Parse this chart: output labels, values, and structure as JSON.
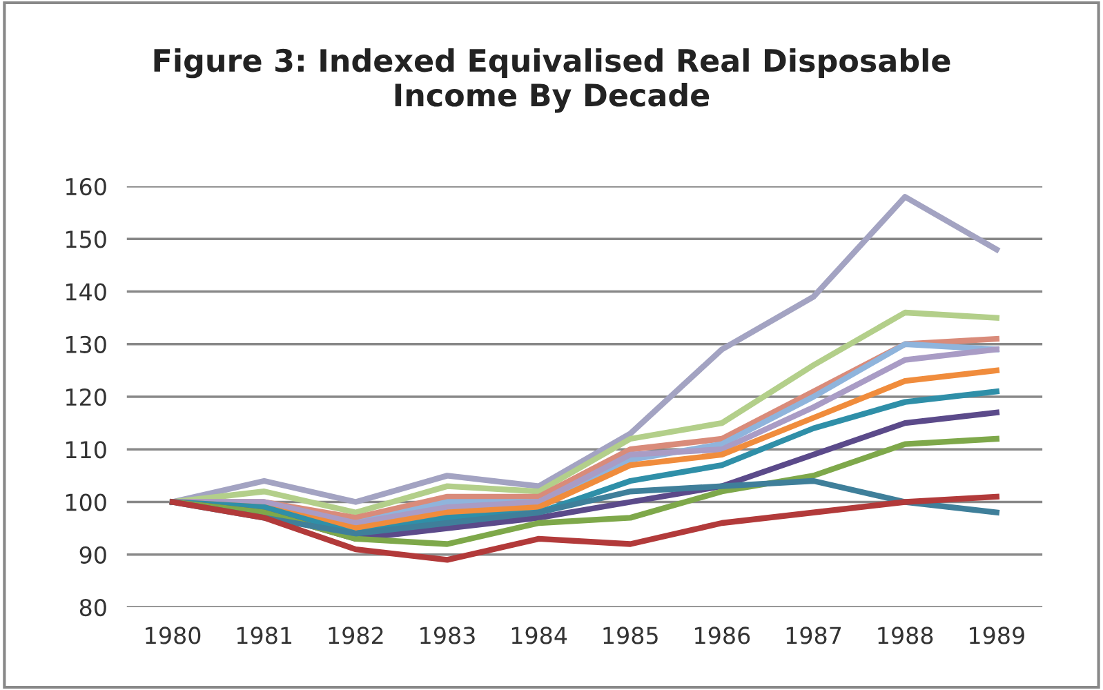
{
  "chart_data": {
    "type": "line",
    "title": "Figure 3: Indexed Equivalised Real Disposable\nIncome By Decade",
    "categories": [
      "1980",
      "1981",
      "1982",
      "1983",
      "1984",
      "1985",
      "1986",
      "1987",
      "1988",
      "1989"
    ],
    "ylim": [
      80,
      160
    ],
    "yticks": [
      80,
      90,
      100,
      110,
      120,
      130,
      140,
      150,
      160
    ],
    "grid": "y",
    "legend": false,
    "marker": "none",
    "line_style": "solid",
    "series": [
      {
        "color": "#a3a3c2",
        "values": [
          100,
          104,
          100,
          105,
          103,
          113,
          129,
          139,
          158,
          148
        ]
      },
      {
        "color": "#b3cf8a",
        "values": [
          100,
          102,
          98,
          103,
          102,
          112,
          115,
          126,
          136,
          135
        ]
      },
      {
        "color": "#d98b7a",
        "values": [
          100,
          100,
          97,
          101,
          101,
          110,
          112,
          121,
          130,
          131
        ]
      },
      {
        "color": "#8fb4dc",
        "values": [
          100,
          99,
          96,
          100,
          100,
          108,
          111,
          120,
          130,
          129
        ]
      },
      {
        "color": "#a99cc5",
        "values": [
          100,
          100,
          96,
          99,
          100,
          109,
          110,
          118,
          127,
          129
        ]
      },
      {
        "color": "#f08c3c",
        "values": [
          100,
          99,
          95,
          98,
          99,
          107,
          109,
          116,
          123,
          125
        ]
      },
      {
        "color": "#2f8fa8",
        "values": [
          100,
          99,
          94,
          97,
          98,
          104,
          107,
          114,
          119,
          121
        ]
      },
      {
        "color": "#5b4a8a",
        "values": [
          100,
          98,
          93,
          95,
          97,
          100,
          103,
          109,
          115,
          117
        ]
      },
      {
        "color": "#7ea84a",
        "values": [
          100,
          98,
          93,
          92,
          96,
          97,
          102,
          105,
          111,
          112
        ]
      },
      {
        "color": "#3f7f9a",
        "values": [
          100,
          97,
          94,
          96,
          98,
          102,
          103,
          104,
          100,
          98
        ]
      },
      {
        "color": "#b23a3a",
        "values": [
          100,
          97,
          91,
          89,
          93,
          92,
          96,
          98,
          100,
          101
        ]
      }
    ]
  }
}
